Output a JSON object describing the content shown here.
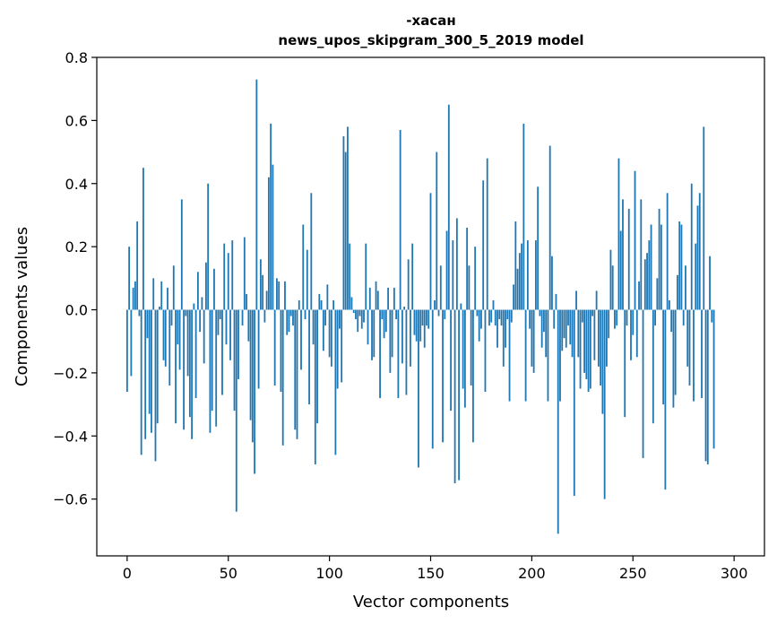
{
  "chart_data": {
    "type": "bar",
    "title_line1": "-хасан",
    "title_line2": "news_upos_skipgram_300_5_2019 model",
    "xlabel": "Vector components",
    "ylabel": "Components values",
    "xlim": [
      -15,
      315
    ],
    "ylim": [
      -0.78,
      0.8
    ],
    "xticks": [
      0,
      50,
      100,
      150,
      200,
      250,
      300
    ],
    "xtick_labels": [
      "0",
      "50",
      "100",
      "150",
      "200",
      "250",
      "300"
    ],
    "yticks": [
      -0.6,
      -0.4,
      -0.2,
      0.0,
      0.2,
      0.4,
      0.6,
      0.8
    ],
    "ytick_labels": [
      "−0.6",
      "−0.4",
      "−0.2",
      "0.0",
      "0.2",
      "0.4",
      "0.6",
      "0.8"
    ],
    "bar_color": "#1f77b4",
    "values": [
      -0.26,
      0.2,
      -0.21,
      0.07,
      0.09,
      0.28,
      -0.02,
      -0.46,
      0.45,
      -0.41,
      -0.09,
      -0.33,
      -0.39,
      0.1,
      -0.48,
      -0.36,
      0.01,
      0.09,
      -0.16,
      -0.18,
      0.07,
      -0.24,
      -0.05,
      0.14,
      -0.36,
      -0.11,
      -0.19,
      0.35,
      -0.38,
      -0.02,
      -0.21,
      -0.34,
      -0.41,
      0.02,
      -0.28,
      0.12,
      -0.07,
      0.04,
      -0.17,
      0.15,
      0.4,
      -0.39,
      -0.32,
      0.13,
      -0.37,
      -0.08,
      -0.03,
      -0.27,
      0.21,
      -0.11,
      0.18,
      -0.16,
      0.22,
      -0.32,
      -0.64,
      -0.22,
      0.0,
      -0.05,
      0.23,
      0.05,
      -0.1,
      -0.35,
      -0.42,
      -0.52,
      0.73,
      -0.25,
      0.16,
      0.11,
      -0.04,
      0.06,
      0.42,
      0.59,
      0.46,
      -0.24,
      0.1,
      0.09,
      -0.26,
      -0.43,
      0.09,
      -0.08,
      -0.07,
      -0.02,
      -0.05,
      -0.38,
      -0.41,
      0.03,
      -0.19,
      0.27,
      -0.03,
      0.19,
      -0.3,
      0.37,
      -0.11,
      -0.49,
      -0.36,
      0.05,
      0.03,
      -0.13,
      -0.05,
      0.08,
      -0.15,
      -0.18,
      0.03,
      -0.46,
      -0.25,
      -0.06,
      -0.23,
      0.55,
      0.5,
      0.58,
      0.21,
      0.04,
      -0.01,
      -0.03,
      -0.07,
      -0.02,
      -0.06,
      -0.04,
      0.21,
      -0.11,
      0.07,
      -0.16,
      -0.15,
      0.09,
      0.06,
      -0.28,
      -0.03,
      -0.09,
      -0.07,
      0.07,
      -0.2,
      -0.15,
      0.07,
      -0.03,
      -0.28,
      0.57,
      -0.17,
      0.01,
      -0.27,
      0.16,
      -0.18,
      0.21,
      -0.08,
      -0.1,
      -0.5,
      -0.1,
      -0.05,
      -0.12,
      -0.05,
      -0.06,
      0.37,
      -0.44,
      0.03,
      0.5,
      -0.02,
      0.14,
      -0.42,
      -0.03,
      0.25,
      0.65,
      -0.32,
      0.22,
      -0.55,
      0.29,
      -0.54,
      0.02,
      -0.25,
      -0.31,
      0.26,
      0.14,
      -0.24,
      -0.42,
      0.2,
      -0.02,
      -0.1,
      -0.06,
      0.41,
      -0.26,
      0.48,
      -0.05,
      -0.04,
      0.03,
      -0.05,
      -0.12,
      -0.03,
      -0.05,
      -0.18,
      -0.12,
      -0.03,
      -0.29,
      -0.04,
      0.08,
      0.28,
      0.13,
      0.18,
      0.21,
      0.59,
      -0.29,
      0.22,
      -0.06,
      -0.18,
      -0.2,
      0.22,
      0.39,
      -0.02,
      -0.12,
      -0.07,
      -0.15,
      -0.29,
      0.52,
      0.17,
      -0.06,
      0.05,
      -0.71,
      -0.29,
      -0.13,
      -0.09,
      -0.12,
      -0.05,
      -0.11,
      -0.15,
      -0.59,
      0.06,
      -0.15,
      -0.25,
      -0.04,
      -0.2,
      -0.22,
      -0.26,
      -0.25,
      -0.02,
      -0.16,
      0.06,
      -0.18,
      -0.24,
      -0.33,
      -0.6,
      -0.18,
      -0.09,
      0.19,
      0.14,
      -0.06,
      -0.05,
      0.48,
      0.25,
      0.35,
      -0.34,
      -0.05,
      0.32,
      -0.16,
      -0.08,
      0.44,
      -0.15,
      0.09,
      0.35,
      -0.47,
      0.16,
      0.18,
      0.22,
      0.27,
      -0.36,
      -0.05,
      0.1,
      0.32,
      0.27,
      -0.3,
      -0.57,
      0.37,
      0.03,
      -0.07,
      -0.31,
      -0.27,
      0.11,
      0.28,
      0.27,
      -0.05,
      0.14,
      -0.18,
      -0.24,
      0.4,
      -0.29,
      0.21,
      0.33,
      0.37,
      -0.28,
      0.58,
      -0.48,
      -0.49,
      0.17,
      -0.04,
      -0.44
    ]
  }
}
